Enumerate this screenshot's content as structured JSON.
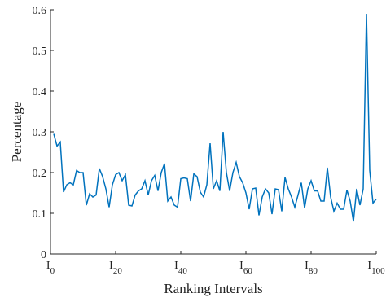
{
  "chart_data": {
    "type": "line",
    "x": [
      1,
      2,
      3,
      4,
      5,
      6,
      7,
      8,
      9,
      10,
      11,
      12,
      13,
      14,
      15,
      16,
      17,
      18,
      19,
      20,
      21,
      22,
      23,
      24,
      25,
      26,
      27,
      28,
      29,
      30,
      31,
      32,
      33,
      34,
      35,
      36,
      37,
      38,
      39,
      40,
      41,
      42,
      43,
      44,
      45,
      46,
      47,
      48,
      49,
      50,
      51,
      52,
      53,
      54,
      55,
      56,
      57,
      58,
      59,
      60,
      61,
      62,
      63,
      64,
      65,
      66,
      67,
      68,
      69,
      70,
      71,
      72,
      73,
      74,
      75,
      76,
      77,
      78,
      79,
      80,
      81,
      82,
      83,
      84,
      85,
      86,
      87,
      88,
      89,
      90,
      91,
      92,
      93,
      94,
      95,
      96,
      97,
      98,
      99,
      100
    ],
    "series": [
      {
        "color": "#0072bd",
        "values": [
          0.295,
          0.265,
          0.275,
          0.152,
          0.17,
          0.175,
          0.17,
          0.205,
          0.2,
          0.2,
          0.12,
          0.148,
          0.14,
          0.145,
          0.21,
          0.19,
          0.16,
          0.115,
          0.17,
          0.195,
          0.2,
          0.18,
          0.195,
          0.12,
          0.118,
          0.145,
          0.155,
          0.16,
          0.18,
          0.145,
          0.18,
          0.193,
          0.155,
          0.2,
          0.222,
          0.13,
          0.14,
          0.12,
          0.115,
          0.185,
          0.187,
          0.185,
          0.13,
          0.197,
          0.19,
          0.152,
          0.14,
          0.17,
          0.272,
          0.16,
          0.18,
          0.155,
          0.3,
          0.2,
          0.155,
          0.2,
          0.225,
          0.19,
          0.175,
          0.15,
          0.11,
          0.16,
          0.162,
          0.095,
          0.14,
          0.16,
          0.15,
          0.098,
          0.16,
          0.158,
          0.105,
          0.188,
          0.16,
          0.14,
          0.115,
          0.145,
          0.175,
          0.113,
          0.16,
          0.18,
          0.155,
          0.155,
          0.13,
          0.13,
          0.212,
          0.14,
          0.105,
          0.125,
          0.11,
          0.11,
          0.157,
          0.13,
          0.08,
          0.16,
          0.12,
          0.16,
          0.59,
          0.205,
          0.125,
          0.135
        ]
      }
    ],
    "xlim": [
      0,
      100
    ],
    "xticks": [
      {
        "value": 0,
        "label": "I0"
      },
      {
        "value": 20,
        "label": "I20"
      },
      {
        "value": 40,
        "label": "I40"
      },
      {
        "value": 60,
        "label": "I60"
      },
      {
        "value": 80,
        "label": "I80"
      },
      {
        "value": 100,
        "label": "I100"
      }
    ],
    "ylim": [
      0,
      0.6
    ],
    "yticks": [
      0,
      0.1,
      0.2,
      0.3,
      0.4,
      0.5,
      0.6
    ],
    "xlabel": "Ranking Intervals",
    "ylabel": "Percentage"
  }
}
